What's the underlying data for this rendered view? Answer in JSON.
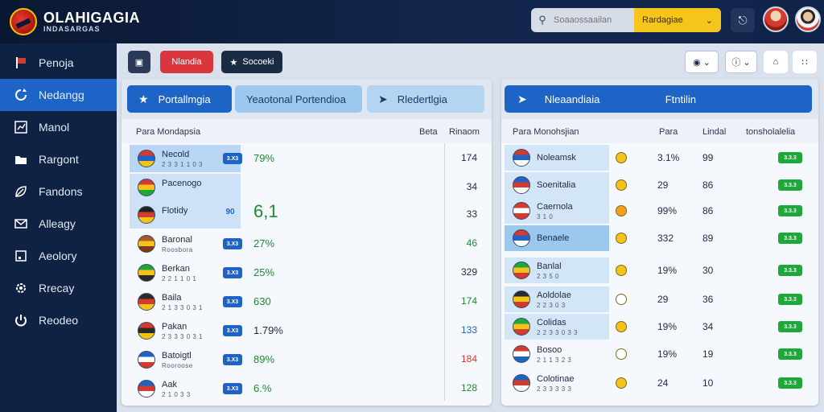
{
  "header": {
    "brand_title": "OLAHIGAGIA",
    "brand_sub": "INDASARGAS",
    "search_placeholder": "Soaaossaailan",
    "search_select": "Rardagiae",
    "search_select_chevron": "chevron-down-icon"
  },
  "sidebar": {
    "items": [
      {
        "label": "Penoja",
        "icon": "flag-icon"
      },
      {
        "label": "Nedangg",
        "icon": "refresh-icon"
      },
      {
        "label": "Manol",
        "icon": "chart-icon"
      },
      {
        "label": "Rargont",
        "icon": "folder-icon"
      },
      {
        "label": "Fandons",
        "icon": "leaf-icon"
      },
      {
        "label": "Alleagy",
        "icon": "mail-icon"
      },
      {
        "label": "Aeolory",
        "icon": "square-icon"
      },
      {
        "label": "Rrecay",
        "icon": "gear-icon"
      },
      {
        "label": "Reodeo",
        "icon": "power-icon"
      }
    ]
  },
  "toolbar": {
    "btn_red": "Nlandia",
    "btn_dark": "Socoeki"
  },
  "left_panel": {
    "tabs": [
      "Portallmgia",
      "Yeaotonal Portendioa",
      "Rledertlgia"
    ],
    "col_name": "Para Mondapsia",
    "col_data": "Beta",
    "col_rank": "Rinaom",
    "rows": [
      {
        "name": "Necold",
        "sub": "2 3 3 1 1 0 3",
        "pill": "3.X3",
        "pct": "79%",
        "val": "174",
        "val_color": "#1c2b44",
        "flag": [
          "#d43b2f",
          "#1e63c6",
          "#f3c31a"
        ]
      },
      {
        "name": "Pacenogo",
        "sub": "",
        "pill": "",
        "pct": "",
        "val": "34",
        "val_color": "#1c2b44",
        "flag": [
          "#d43b2f",
          "#f3c31a",
          "#1fa83a"
        ]
      },
      {
        "name": "Flotidy",
        "sub": "",
        "pill": "90",
        "pct": "6,1",
        "val": "33",
        "val_color": "#1c2b44",
        "flag": [
          "#222222",
          "#d43b2f",
          "#f3c31a"
        ]
      },
      {
        "name": "Baronal",
        "sub": "Roosbora",
        "pill": "3.X3",
        "pct": "27%",
        "val": "46",
        "val_color": "#1f8a2e",
        "flag": [
          "#a85b28",
          "#f3c31a",
          "#7a3a18"
        ]
      },
      {
        "name": "Berkan",
        "sub": "2 2 1 1 0 1",
        "pill": "3.X3",
        "pct": "25%",
        "val": "329",
        "val_color": "#1c2b44",
        "flag": [
          "#1fa83a",
          "#f3c31a",
          "#2a2a2a"
        ]
      },
      {
        "name": "Baila",
        "sub": "2 1 3 3 0 3 1",
        "pill": "3.X3",
        "pct": "630",
        "val": "174",
        "val_color": "#1f8a2e",
        "flag": [
          "#2a2a2a",
          "#d43b2f",
          "#f3c31a"
        ]
      },
      {
        "name": "Pakan",
        "sub": "2 3 3 3 0 3 1",
        "pill": "3.X3",
        "pct": "1.79%",
        "val": "133",
        "val_color": "#1e63c6",
        "flag": [
          "#d43b2f",
          "#2a2a2a",
          "#f3c31a"
        ]
      },
      {
        "name": "Batoigtl",
        "sub": "Rooroose",
        "pill": "3.X3",
        "pct": "89%",
        "val": "184",
        "val_color": "#d43b2f",
        "flag": [
          "#1e63c6",
          "#ffffff",
          "#d43b2f"
        ]
      },
      {
        "name": "Aak",
        "sub": "2 1 0 3 3",
        "pill": "3.X3",
        "pct": "6.%",
        "val": "128",
        "val_color": "#1f8a2e",
        "flag": [
          "#1e63c6",
          "#d43b2f",
          "#ffffff"
        ]
      }
    ]
  },
  "right_panel": {
    "tab_main": "Nleaandiaia",
    "tab_sub": "Ftntilin",
    "col_name": "Para Monohsjian",
    "col_a": "Para",
    "col_b": "Lindal",
    "col_c": "tonsholalelia",
    "rows": [
      {
        "name": "Noleamsk",
        "sub": "",
        "a": "3.1%",
        "b": "99",
        "pill": "3.3.3",
        "flag": [
          "#d43b2f",
          "#1e63c6",
          "#ffffff"
        ],
        "ico": "#f3c31a"
      },
      {
        "name": "Soenitalia",
        "sub": "",
        "a": "29",
        "b": "86",
        "pill": "3.3.3",
        "flag": [
          "#1e63c6",
          "#d43b2f",
          "#ffffff"
        ],
        "ico": "#f3c31a"
      },
      {
        "name": "Caernola",
        "sub": "3 1 0",
        "a": "99%",
        "b": "86",
        "pill": "3.3.3",
        "flag": [
          "#d43b2f",
          "#ffffff",
          "#d43b2f"
        ],
        "ico": "#f3a21a"
      },
      {
        "name": "Benaele",
        "sub": "",
        "a": "332",
        "b": "89",
        "pill": "3.3.3",
        "flag": [
          "#d43b2f",
          "#1e63c6",
          "#ffffff"
        ],
        "ico": "#f3c31a"
      },
      {
        "name": "Banlal",
        "sub": "2 3 5 0",
        "a": "19%",
        "b": "30",
        "pill": "3.3.3",
        "flag": [
          "#1fa83a",
          "#f3c31a",
          "#d43b2f"
        ],
        "ico": "#f3c31a"
      },
      {
        "name": "Aoldolae",
        "sub": "2 2 3 0 3",
        "a": "29",
        "b": "36",
        "pill": "3.3.3",
        "flag": [
          "#2a2a2a",
          "#f3c31a",
          "#d43b2f"
        ],
        "ico": "#ffffff"
      },
      {
        "name": "Colidas",
        "sub": "2 2 3 3 0 3 3",
        "a": "19%",
        "b": "34",
        "pill": "3.3.3",
        "flag": [
          "#1fa83a",
          "#f3c31a",
          "#d43b2f"
        ],
        "ico": "#f3c31a"
      },
      {
        "name": "Bosoo",
        "sub": "2 1 1 3 2 3",
        "a": "19%",
        "b": "19",
        "pill": "3.3.3",
        "flag": [
          "#d43b2f",
          "#ffffff",
          "#1e63c6"
        ],
        "ico": "#ffffff"
      },
      {
        "name": "Colotinae",
        "sub": "2 3 3 3 3 3",
        "a": "24",
        "b": "10",
        "pill": "3.3.3",
        "flag": [
          "#1e63c6",
          "#d43b2f",
          "#ffffff"
        ],
        "ico": "#f3c31a"
      }
    ]
  },
  "colors": {
    "accent": "#1e63c6",
    "accent_light": "#8fc0ef",
    "green": "#1fa83a",
    "red_button": "#d9363e",
    "yellow": "#f6c51b",
    "sidebar_bg": "#0f2244"
  }
}
